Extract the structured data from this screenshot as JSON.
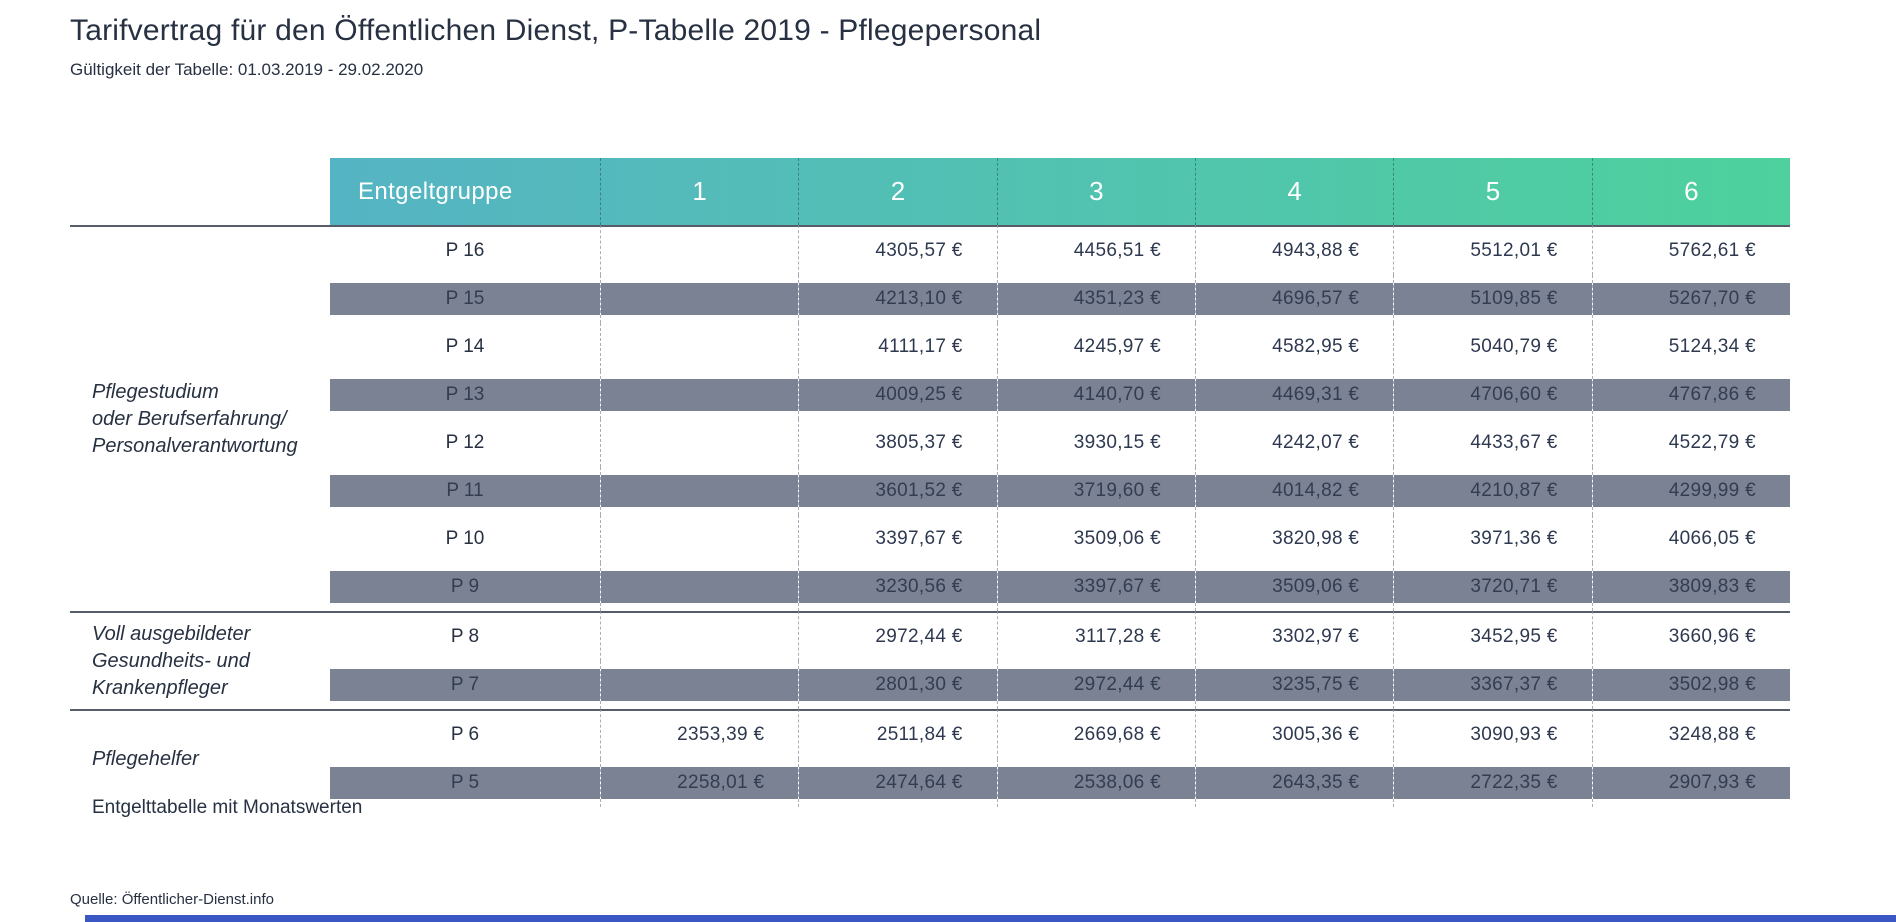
{
  "page": {
    "title": "Tarifvertrag für den Öffentlichen Dienst, P-Tabelle 2019 - Pflegepersonal",
    "subtitle": "Gültigkeit der Tabelle: 01.03.2019 - 29.02.2020",
    "footnote": "Entgelttabelle mit Monatswerten",
    "source": "Quelle: Öffentlicher-Dienst.info"
  },
  "colors": {
    "header_gradient_start": "#55B4C3",
    "header_gradient_end": "#4ED19D",
    "stripe": "#7B8294",
    "text": "#273142",
    "section_line": "#565D68",
    "column_dash": "#A8AEB9",
    "accent_bar": "#3A57C4"
  },
  "table": {
    "group_header": "Entgeltgruppe",
    "level_headers": [
      "1",
      "2",
      "3",
      "4",
      "5",
      "6"
    ],
    "sections": [
      {
        "label_lines": [
          "Pflegestudium",
          "oder Berufserfahrung/",
          "Personalverantwortung"
        ],
        "rows": [
          {
            "group": "P 16",
            "striped": false,
            "values": [
              "",
              "4305,57 €",
              "4456,51 €",
              "4943,88 €",
              "5512,01 €",
              "5762,61 €"
            ]
          },
          {
            "group": "P 15",
            "striped": true,
            "values": [
              "",
              "4213,10 €",
              "4351,23 €",
              "4696,57 €",
              "5109,85 €",
              "5267,70 €"
            ]
          },
          {
            "group": "P 14",
            "striped": false,
            "values": [
              "",
              "4111,17 €",
              "4245,97 €",
              "4582,95 €",
              "5040,79 €",
              "5124,34 €"
            ]
          },
          {
            "group": "P 13",
            "striped": true,
            "values": [
              "",
              "4009,25 €",
              "4140,70 €",
              "4469,31 €",
              "4706,60 €",
              "4767,86 €"
            ]
          },
          {
            "group": "P 12",
            "striped": false,
            "values": [
              "",
              "3805,37 €",
              "3930,15 €",
              "4242,07 €",
              "4433,67 €",
              "4522,79 €"
            ]
          },
          {
            "group": "P 11",
            "striped": true,
            "values": [
              "",
              "3601,52 €",
              "3719,60 €",
              "4014,82 €",
              "4210,87 €",
              "4299,99 €"
            ]
          },
          {
            "group": "P 10",
            "striped": false,
            "values": [
              "",
              "3397,67 €",
              "3509,06 €",
              "3820,98 €",
              "3971,36 €",
              "4066,05 €"
            ]
          },
          {
            "group": "P 9",
            "striped": true,
            "values": [
              "",
              "3230,56 €",
              "3397,67 €",
              "3509,06 €",
              "3720,71 €",
              "3809,83 €"
            ]
          }
        ]
      },
      {
        "label_lines": [
          "Voll ausgebildeter",
          "Gesundheits- und",
          "Krankenpfleger"
        ],
        "rows": [
          {
            "group": "P 8",
            "striped": false,
            "values": [
              "",
              "2972,44 €",
              "3117,28 €",
              "3302,97 €",
              "3452,95 €",
              "3660,96 €"
            ]
          },
          {
            "group": "P 7",
            "striped": true,
            "values": [
              "",
              "2801,30 €",
              "2972,44 €",
              "3235,75 €",
              "3367,37 €",
              "3502,98 €"
            ]
          }
        ]
      },
      {
        "label_lines": [
          "Pflegehelfer"
        ],
        "rows": [
          {
            "group": "P 6",
            "striped": false,
            "values": [
              "2353,39 €",
              "2511,84 €",
              "2669,68 €",
              "3005,36 €",
              "3090,93 €",
              "3248,88 €"
            ]
          },
          {
            "group": "P 5",
            "striped": true,
            "values": [
              "2258,01 €",
              "2474,64 €",
              "2538,06 €",
              "2643,35 €",
              "2722,35 €",
              "2907,93 €"
            ]
          }
        ]
      }
    ]
  },
  "chart_data": {
    "type": "table",
    "title": "Tarifvertrag für den Öffentlichen Dienst, P-Tabelle 2019 - Pflegepersonal",
    "subtitle": "Gültigkeit der Tabelle: 01.03.2019 - 29.02.2020",
    "columns": [
      "Entgeltgruppe",
      "1",
      "2",
      "3",
      "4",
      "5",
      "6"
    ],
    "unit": "EUR/Monat",
    "row_groups": [
      {
        "group_label": "Pflegestudium oder Berufserfahrung/ Personalverantwortung",
        "rows": [
          "P 16",
          "P 15",
          "P 14",
          "P 13",
          "P 12",
          "P 11",
          "P 10",
          "P 9"
        ]
      },
      {
        "group_label": "Voll ausgebildeter Gesundheits- und Krankenpfleger",
        "rows": [
          "P 8",
          "P 7"
        ]
      },
      {
        "group_label": "Pflegehelfer",
        "rows": [
          "P 6",
          "P 5"
        ]
      }
    ],
    "rows": [
      [
        "P 16",
        null,
        4305.57,
        4456.51,
        4943.88,
        5512.01,
        5762.61
      ],
      [
        "P 15",
        null,
        4213.1,
        4351.23,
        4696.57,
        5109.85,
        5267.7
      ],
      [
        "P 14",
        null,
        4111.17,
        4245.97,
        4582.95,
        5040.79,
        5124.34
      ],
      [
        "P 13",
        null,
        4009.25,
        4140.7,
        4469.31,
        4706.6,
        4767.86
      ],
      [
        "P 12",
        null,
        3805.37,
        3930.15,
        4242.07,
        4433.67,
        4522.79
      ],
      [
        "P 11",
        null,
        3601.52,
        3719.6,
        4014.82,
        4210.87,
        4299.99
      ],
      [
        "P 10",
        null,
        3397.67,
        3509.06,
        3820.98,
        3971.36,
        4066.05
      ],
      [
        "P 9",
        null,
        3230.56,
        3397.67,
        3509.06,
        3720.71,
        3809.83
      ],
      [
        "P 8",
        null,
        2972.44,
        3117.28,
        3302.97,
        3452.95,
        3660.96
      ],
      [
        "P 7",
        null,
        2801.3,
        2972.44,
        3235.75,
        3367.37,
        3502.98
      ],
      [
        "P 6",
        2353.39,
        2511.84,
        2669.68,
        3005.36,
        3090.93,
        3248.88
      ],
      [
        "P 5",
        2258.01,
        2474.64,
        2538.06,
        2643.35,
        2722.35,
        2907.93
      ]
    ]
  }
}
